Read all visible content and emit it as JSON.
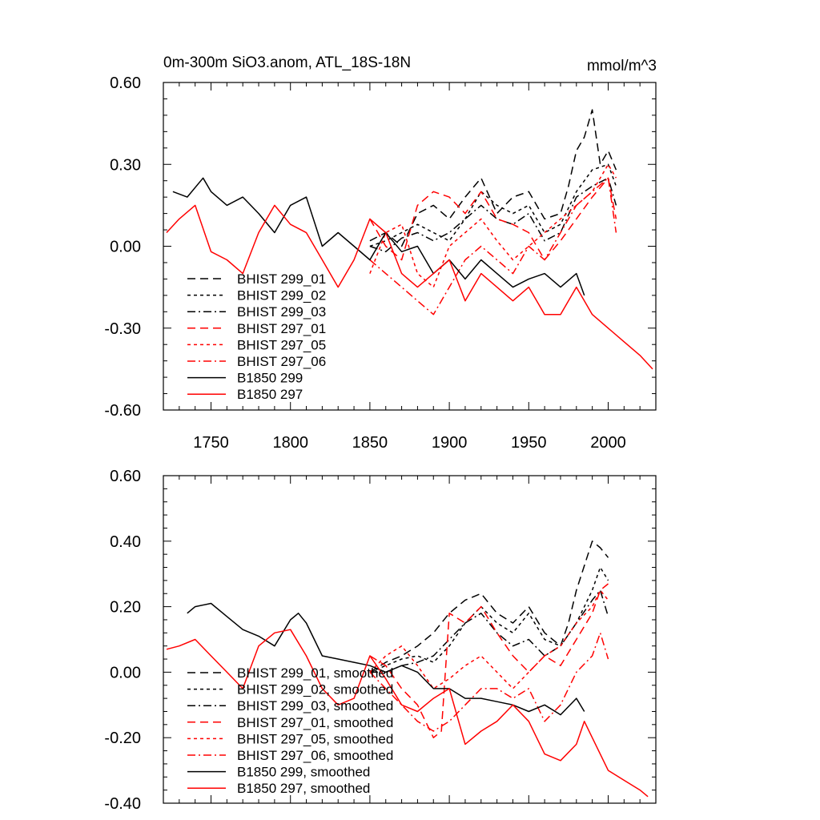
{
  "chart_data": [
    {
      "type": "line",
      "title": "0m-300m SiO3.anom, ATL_18S-18N",
      "units": "mmol/m^3",
      "xlabel": "",
      "ylabel": "",
      "xlim": [
        1720,
        2030
      ],
      "ylim": [
        -0.6,
        0.6
      ],
      "x_ticks": [
        1750,
        1800,
        1850,
        1900,
        1950,
        2000
      ],
      "y_ticks": [
        -0.6,
        -0.3,
        0.0,
        0.3,
        0.6
      ],
      "y_tick_labels": [
        "-0.60",
        "-0.30",
        "0.00",
        "0.30",
        "0.60"
      ],
      "grid": false,
      "legend_position": "lower-left",
      "series": [
        {
          "name": "BHIST 299_01",
          "color": "#000000",
          "dash": "long-dash",
          "x": [
            1850,
            1860,
            1870,
            1880,
            1890,
            1900,
            1910,
            1920,
            1930,
            1940,
            1950,
            1960,
            1970,
            1975,
            1980,
            1985,
            1990,
            1995,
            2000,
            2005
          ],
          "y": [
            0.02,
            0.05,
            0.0,
            0.12,
            0.15,
            0.1,
            0.18,
            0.25,
            0.12,
            0.18,
            0.2,
            0.1,
            0.12,
            0.22,
            0.35,
            0.4,
            0.5,
            0.3,
            0.35,
            0.28
          ]
        },
        {
          "name": "BHIST 299_02",
          "color": "#000000",
          "dash": "short-dash",
          "x": [
            1850,
            1860,
            1870,
            1880,
            1890,
            1900,
            1910,
            1920,
            1930,
            1940,
            1950,
            1960,
            1970,
            1980,
            1990,
            2000,
            2005
          ],
          "y": [
            0.0,
            0.02,
            0.05,
            0.08,
            0.05,
            0.02,
            0.1,
            0.2,
            0.15,
            0.12,
            0.15,
            0.05,
            0.08,
            0.2,
            0.28,
            0.3,
            0.22
          ]
        },
        {
          "name": "BHIST 299_03",
          "color": "#000000",
          "dash": "dash-dot",
          "x": [
            1850,
            1860,
            1870,
            1880,
            1890,
            1900,
            1910,
            1920,
            1930,
            1940,
            1950,
            1960,
            1970,
            1980,
            1990,
            2000,
            2005
          ],
          "y": [
            0.0,
            -0.02,
            0.03,
            0.05,
            0.02,
            0.05,
            0.1,
            0.15,
            0.1,
            0.08,
            0.12,
            0.02,
            0.05,
            0.18,
            0.22,
            0.25,
            0.15
          ]
        },
        {
          "name": "BHIST 297_01",
          "color": "#ff0000",
          "dash": "long-dash",
          "x": [
            1850,
            1860,
            1870,
            1880,
            1890,
            1900,
            1910,
            1920,
            1930,
            1940,
            1950,
            1960,
            1970,
            1980,
            1990,
            2000,
            2005
          ],
          "y": [
            0.1,
            0.0,
            -0.05,
            0.15,
            0.2,
            0.18,
            0.12,
            0.2,
            0.1,
            0.08,
            0.05,
            -0.05,
            0.02,
            0.1,
            0.18,
            0.25,
            0.1
          ]
        },
        {
          "name": "BHIST 297_05",
          "color": "#ff0000",
          "dash": "short-dash",
          "x": [
            1850,
            1860,
            1870,
            1880,
            1890,
            1900,
            1910,
            1920,
            1930,
            1940,
            1950,
            1960,
            1970,
            1980,
            1990,
            2000,
            2005
          ],
          "y": [
            -0.1,
            0.05,
            0.08,
            -0.1,
            -0.15,
            0.0,
            0.05,
            0.1,
            0.02,
            -0.05,
            0.0,
            0.05,
            0.1,
            0.15,
            0.2,
            0.3,
            0.25
          ]
        },
        {
          "name": "BHIST 297_06",
          "color": "#ff0000",
          "dash": "dash-dot",
          "x": [
            1850,
            1860,
            1870,
            1880,
            1890,
            1900,
            1910,
            1920,
            1930,
            1940,
            1950,
            1960,
            1970,
            1980,
            1990,
            2000,
            2005
          ],
          "y": [
            -0.05,
            -0.1,
            -0.15,
            -0.2,
            -0.25,
            -0.15,
            -0.05,
            0.0,
            -0.05,
            -0.1,
            0.0,
            -0.05,
            0.05,
            0.15,
            0.2,
            0.25,
            0.05
          ]
        },
        {
          "name": "B1850 299",
          "color": "#000000",
          "dash": "solid",
          "x": [
            1726,
            1735,
            1745,
            1750,
            1760,
            1770,
            1780,
            1790,
            1800,
            1810,
            1820,
            1830,
            1840,
            1850,
            1860,
            1870,
            1880,
            1890,
            1900,
            1910,
            1920,
            1930,
            1940,
            1950,
            1960,
            1970,
            1980,
            1985
          ],
          "y": [
            0.2,
            0.18,
            0.25,
            0.2,
            0.15,
            0.18,
            0.12,
            0.05,
            0.15,
            0.18,
            0.0,
            0.05,
            0.0,
            -0.05,
            0.05,
            -0.02,
            0.0,
            -0.1,
            -0.05,
            -0.12,
            -0.05,
            -0.1,
            -0.15,
            -0.12,
            -0.1,
            -0.15,
            -0.1,
            -0.18
          ]
        },
        {
          "name": "B1850 297",
          "color": "#ff0000",
          "dash": "solid",
          "x": [
            1722,
            1730,
            1740,
            1750,
            1760,
            1770,
            1780,
            1790,
            1800,
            1810,
            1820,
            1830,
            1840,
            1850,
            1860,
            1870,
            1880,
            1890,
            1900,
            1910,
            1920,
            1930,
            1940,
            1950,
            1960,
            1970,
            1980,
            1990,
            2000,
            2010,
            2020,
            2028
          ],
          "y": [
            0.05,
            0.1,
            0.15,
            -0.02,
            -0.05,
            -0.1,
            0.05,
            0.15,
            0.08,
            0.05,
            -0.05,
            -0.15,
            -0.05,
            0.1,
            0.05,
            -0.1,
            -0.15,
            -0.1,
            -0.05,
            -0.2,
            -0.1,
            -0.15,
            -0.2,
            -0.15,
            -0.25,
            -0.25,
            -0.15,
            -0.25,
            -0.3,
            -0.35,
            -0.4,
            -0.45
          ]
        }
      ],
      "legend": {
        "labels": [
          "BHIST 299_01",
          "BHIST 299_02",
          "BHIST 299_03",
          "BHIST 297_01",
          "BHIST 297_05",
          "BHIST 297_06",
          "B1850 299",
          "B1850 297"
        ]
      }
    },
    {
      "type": "line",
      "title": "",
      "units": "",
      "xlabel": "",
      "ylabel": "",
      "xlim": [
        1720,
        2030
      ],
      "ylim": [
        -0.4,
        0.6
      ],
      "x_ticks": [
        1750,
        1800,
        1850,
        1900,
        1950,
        2000
      ],
      "y_ticks": [
        -0.4,
        -0.2,
        0.0,
        0.2,
        0.4,
        0.6
      ],
      "y_tick_labels": [
        "-0.40",
        "-0.20",
        "0.00",
        "0.20",
        "0.40",
        "0.60"
      ],
      "grid": false,
      "legend_position": "lower-left",
      "series": [
        {
          "name": "BHIST 299_01, smoothed",
          "color": "#000000",
          "dash": "long-dash",
          "x": [
            1850,
            1860,
            1870,
            1880,
            1890,
            1900,
            1910,
            1920,
            1930,
            1940,
            1950,
            1960,
            1970,
            1975,
            1980,
            1990,
            1995,
            2000
          ],
          "y": [
            0.0,
            0.03,
            0.05,
            0.08,
            0.12,
            0.18,
            0.22,
            0.24,
            0.18,
            0.15,
            0.2,
            0.12,
            0.08,
            0.15,
            0.25,
            0.4,
            0.38,
            0.35
          ]
        },
        {
          "name": "BHIST 299_02, smoothed",
          "color": "#000000",
          "dash": "short-dash",
          "x": [
            1850,
            1860,
            1870,
            1880,
            1890,
            1900,
            1910,
            1920,
            1930,
            1940,
            1950,
            1960,
            1970,
            1980,
            1990,
            1995,
            2000
          ],
          "y": [
            0.0,
            0.02,
            0.04,
            0.05,
            0.03,
            0.08,
            0.15,
            0.2,
            0.15,
            0.12,
            0.18,
            0.1,
            0.08,
            0.15,
            0.25,
            0.32,
            0.28
          ]
        },
        {
          "name": "BHIST 299_03, smoothed",
          "color": "#000000",
          "dash": "dash-dot",
          "x": [
            1850,
            1860,
            1870,
            1880,
            1890,
            1900,
            1910,
            1920,
            1930,
            1940,
            1950,
            1960,
            1970,
            1980,
            1990,
            1995,
            2000
          ],
          "y": [
            0.0,
            0.0,
            0.02,
            0.03,
            0.05,
            0.1,
            0.15,
            0.18,
            0.12,
            0.08,
            0.1,
            0.05,
            0.08,
            0.15,
            0.22,
            0.25,
            0.17
          ]
        },
        {
          "name": "BHIST 297_01, smoothed",
          "color": "#ff0000",
          "dash": "long-dash",
          "x": [
            1850,
            1860,
            1870,
            1880,
            1890,
            1895,
            1900,
            1910,
            1920,
            1930,
            1940,
            1950,
            1960,
            1970,
            1980,
            1990,
            1995,
            2000
          ],
          "y": [
            0.05,
            0.02,
            -0.05,
            -0.1,
            -0.2,
            -0.18,
            0.18,
            0.15,
            0.2,
            0.12,
            0.05,
            0.0,
            0.05,
            0.02,
            0.1,
            0.18,
            0.25,
            0.27
          ]
        },
        {
          "name": "BHIST 297_05, smoothed",
          "color": "#ff0000",
          "dash": "short-dash",
          "x": [
            1850,
            1860,
            1870,
            1880,
            1890,
            1900,
            1910,
            1920,
            1930,
            1940,
            1950,
            1960,
            1970,
            1980,
            1990,
            1995,
            2000
          ],
          "y": [
            0.0,
            0.05,
            0.08,
            0.02,
            -0.05,
            -0.02,
            0.02,
            0.05,
            0.0,
            -0.05,
            0.0,
            0.05,
            0.08,
            0.15,
            0.2,
            0.25,
            0.22
          ]
        },
        {
          "name": "BHIST 297_06, smoothed",
          "color": "#ff0000",
          "dash": "dash-dot",
          "x": [
            1850,
            1860,
            1870,
            1880,
            1890,
            1900,
            1910,
            1920,
            1930,
            1940,
            1950,
            1960,
            1970,
            1980,
            1990,
            1995,
            2000
          ],
          "y": [
            0.0,
            -0.05,
            -0.1,
            -0.15,
            -0.18,
            -0.15,
            -0.1,
            -0.05,
            -0.05,
            -0.08,
            -0.05,
            -0.15,
            -0.1,
            0.0,
            0.05,
            0.12,
            0.04
          ]
        },
        {
          "name": "B1850 299, smoothed",
          "color": "#000000",
          "dash": "solid",
          "x": [
            1735,
            1740,
            1750,
            1760,
            1770,
            1780,
            1790,
            1800,
            1805,
            1810,
            1820,
            1830,
            1840,
            1850,
            1860,
            1870,
            1880,
            1890,
            1900,
            1910,
            1920,
            1930,
            1940,
            1950,
            1960,
            1970,
            1980,
            1985
          ],
          "y": [
            0.18,
            0.2,
            0.21,
            0.17,
            0.13,
            0.11,
            0.08,
            0.16,
            0.18,
            0.15,
            0.05,
            0.04,
            0.03,
            0.02,
            0.0,
            0.02,
            0.0,
            -0.05,
            -0.05,
            -0.08,
            -0.08,
            -0.09,
            -0.1,
            -0.12,
            -0.1,
            -0.13,
            -0.08,
            -0.12
          ]
        },
        {
          "name": "B1850 297, smoothed",
          "color": "#ff0000",
          "dash": "solid",
          "x": [
            1722,
            1730,
            1740,
            1750,
            1760,
            1770,
            1780,
            1790,
            1800,
            1810,
            1820,
            1830,
            1840,
            1850,
            1860,
            1870,
            1880,
            1890,
            1900,
            1910,
            1920,
            1930,
            1940,
            1950,
            1960,
            1970,
            1980,
            1985,
            1990,
            2000,
            2010,
            2020,
            2025
          ],
          "y": [
            0.07,
            0.08,
            0.1,
            0.05,
            0.0,
            -0.05,
            0.08,
            0.12,
            0.13,
            0.05,
            -0.05,
            -0.1,
            -0.08,
            0.05,
            -0.02,
            -0.1,
            -0.12,
            -0.08,
            -0.05,
            -0.22,
            -0.18,
            -0.15,
            -0.1,
            -0.15,
            -0.25,
            -0.27,
            -0.22,
            -0.15,
            -0.2,
            -0.3,
            -0.33,
            -0.36,
            -0.38
          ]
        }
      ],
      "legend": {
        "labels": [
          "BHIST 299_01, smoothed",
          "BHIST 299_02, smoothed",
          "BHIST 299_03, smoothed",
          "BHIST 297_01, smoothed",
          "BHIST 297_05, smoothed",
          "BHIST 297_06, smoothed",
          "B1850 299, smoothed",
          "B1850 297, smoothed"
        ]
      }
    }
  ]
}
